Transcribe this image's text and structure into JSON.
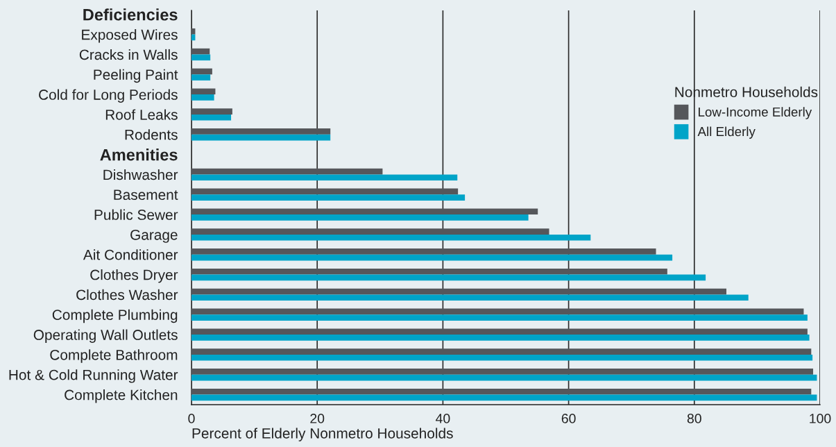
{
  "chart_data": {
    "type": "bar",
    "orientation": "horizontal",
    "categories": [
      "Deficiencies",
      "Exposed Wires",
      "Cracks in Walls",
      "Peeling Paint",
      "Cold for Long Periods",
      "Roof Leaks",
      "Rodents",
      "Amenities",
      "Dishwasher",
      "Basement",
      "Public Sewer",
      "Garage",
      "Ait Conditioner",
      "Clothes Dryer",
      "Clothes Washer",
      "Complete Plumbing",
      "Operating Wall Outlets",
      "Complete Bathroom",
      "Hot & Cold Running Water",
      "Complete Kitchen"
    ],
    "series": [
      {
        "name": "Low-Income Elderly",
        "color": "#55575b",
        "values": [
          null,
          0.6,
          2.9,
          3.3,
          3.8,
          6.5,
          22.1,
          null,
          30.4,
          42.4,
          55.1,
          56.9,
          73.9,
          75.7,
          85.1,
          97.4,
          98.0,
          98.6,
          98.9,
          98.6
        ]
      },
      {
        "name": "All Elderly",
        "color": "#00a4c8",
        "values": [
          null,
          0.6,
          3.0,
          3.0,
          3.6,
          6.3,
          22.1,
          null,
          42.3,
          43.5,
          53.6,
          63.5,
          76.5,
          81.8,
          88.6,
          98.0,
          98.3,
          98.8,
          99.5,
          99.5
        ]
      }
    ],
    "xlabel": "Percent of Elderly Nonmetro Households",
    "legend_title": "Nonmetro Households",
    "xlim": [
      0,
      100
    ],
    "xticks": [
      0,
      20,
      40,
      60,
      80,
      100
    ],
    "grid": "x",
    "legend": "top right"
  }
}
